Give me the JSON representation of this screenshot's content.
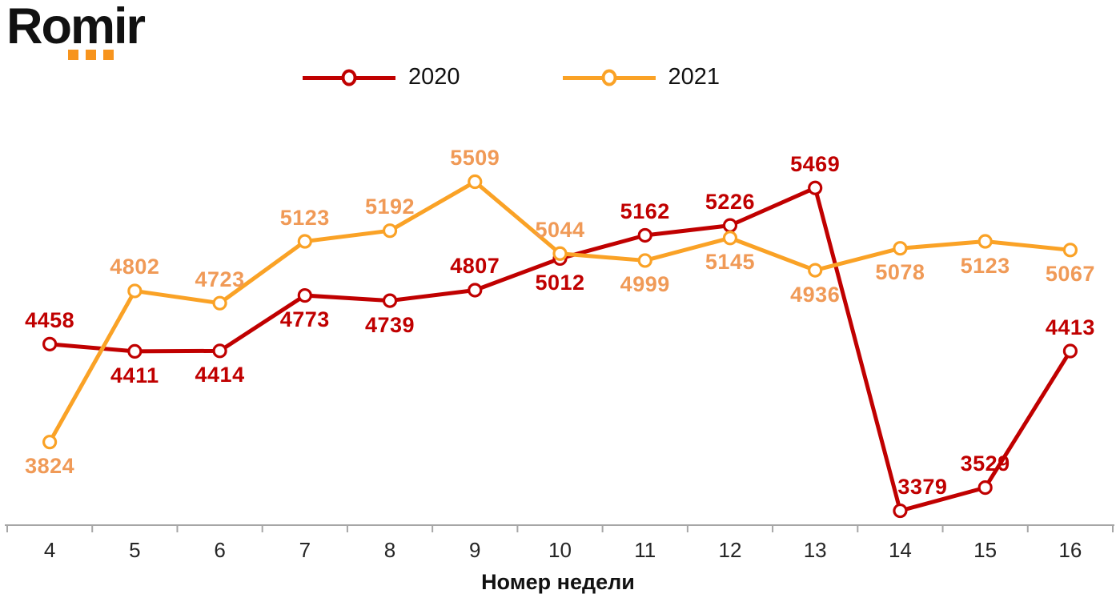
{
  "logo": {
    "text": "Romir",
    "accent_color": "#F7941D"
  },
  "legend": {
    "items": [
      {
        "label": "2020",
        "color": "#C00000"
      },
      {
        "label": "2021",
        "color": "#FAA226"
      }
    ]
  },
  "xaxis": {
    "title": "Номер недели"
  },
  "colors": {
    "axis_line": "#A6A6A6",
    "marker_fill": "#FFFFFF",
    "series_2020": "#C00000",
    "series_2021": "#FAA226",
    "label_2020": "#C00000",
    "label_2021": "#F09A57"
  },
  "chart_data": {
    "type": "line",
    "title": "",
    "xlabel": "Номер недели",
    "ylabel": "",
    "categories": [
      4,
      5,
      6,
      7,
      8,
      9,
      10,
      11,
      12,
      13,
      14,
      15,
      16
    ],
    "ylim": [
      3286,
      5960
    ],
    "grid": false,
    "legend_position": "top",
    "series": [
      {
        "name": "2020",
        "color": "#C00000",
        "label_color": "#C00000",
        "values": [
          4458,
          4411,
          4414,
          4773,
          4739,
          4807,
          5012,
          5162,
          5226,
          5469,
          3379,
          3529,
          4413
        ],
        "label_pos": [
          "above",
          "below",
          "below",
          "below",
          "below",
          "above",
          "below",
          "above",
          "above",
          "above",
          "above",
          "above",
          "above"
        ],
        "label_dx": [
          0,
          0,
          0,
          0,
          0,
          0,
          0,
          0,
          0,
          0,
          28,
          0,
          0
        ]
      },
      {
        "name": "2021",
        "color": "#FAA226",
        "label_color": "#F09A57",
        "values": [
          3824,
          4802,
          4723,
          5123,
          5192,
          5509,
          5044,
          4999,
          5145,
          4936,
          5078,
          5123,
          5067
        ],
        "label_pos": [
          "below",
          "above",
          "above",
          "above",
          "above",
          "above",
          "above",
          "below",
          "below",
          "below",
          "below",
          "below",
          "below"
        ],
        "label_dx": [
          0,
          0,
          0,
          0,
          0,
          0,
          0,
          0,
          0,
          0,
          0,
          0,
          0
        ]
      }
    ]
  }
}
